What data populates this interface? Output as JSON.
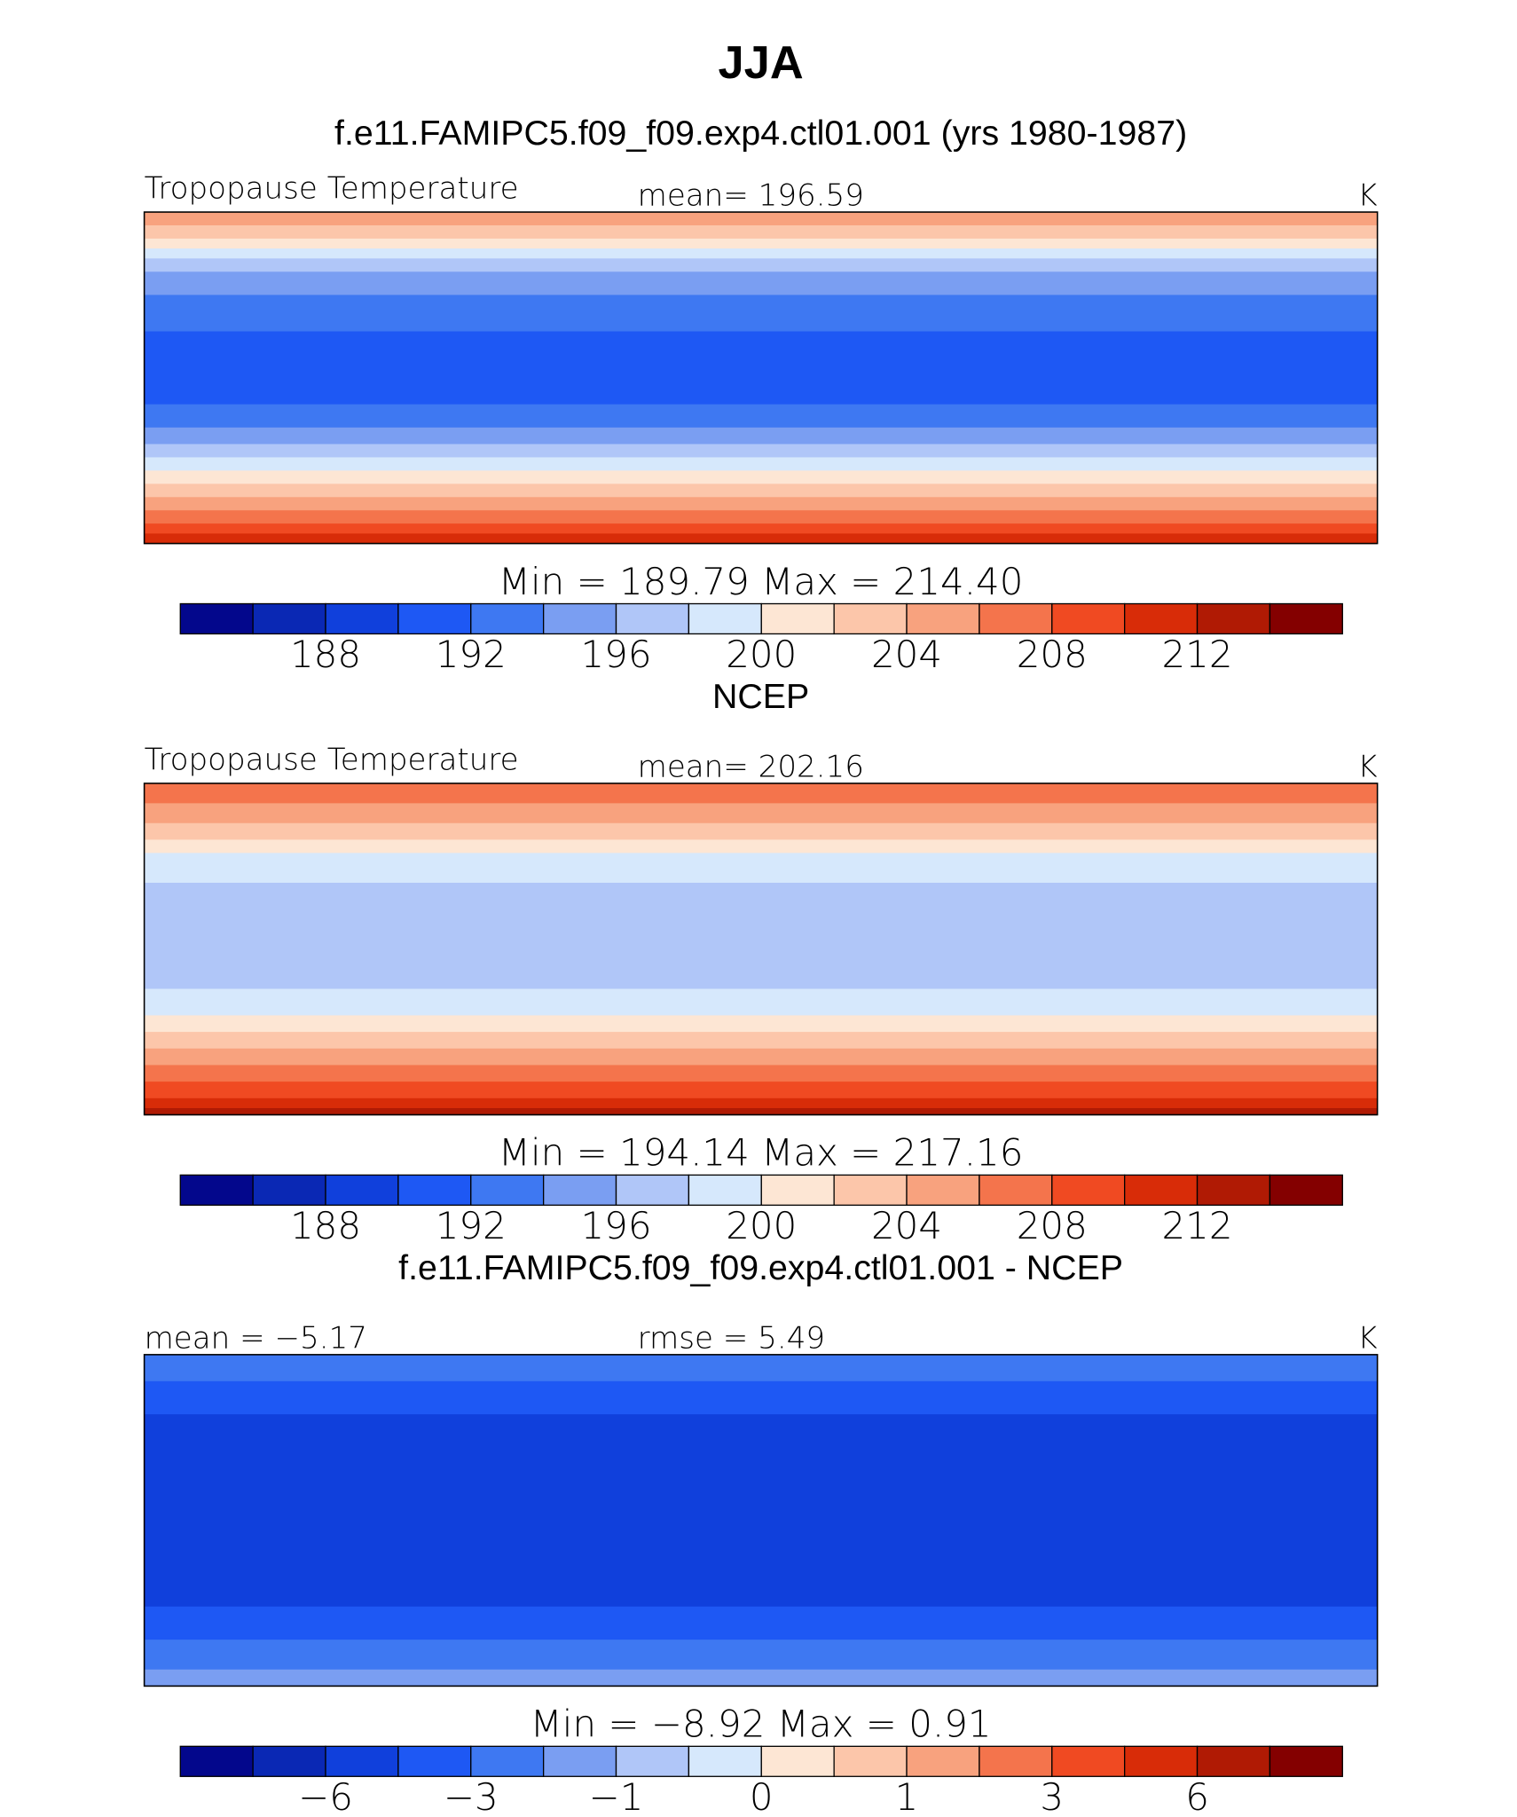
{
  "chart_data": [
    {
      "type": "contour-map",
      "title": "JJA",
      "subtitle": "f.e11.FAMIPC5.f09_f09.exp4.ctl01.001 (yrs 1980-1987)",
      "left_label": "Tropopause Temperature",
      "center_label": "mean=  196.59",
      "units": "K",
      "minmax": "Min  =  189.79  Max  =  214.40",
      "colors": [
        "#03078c",
        "#0a28b4",
        "#1040dc",
        "#1e58f4",
        "#3e78f2",
        "#7a9ef2",
        "#b0c6f8",
        "#d6e8fc",
        "#fde6d4",
        "#fcc6aa",
        "#f8a27e",
        "#f4744c",
        "#f04a22",
        "#d82c08",
        "#b01a04",
        "#840000"
      ],
      "colorbar_ticks": [
        188,
        192,
        196,
        200,
        204,
        208,
        212
      ]
    },
    {
      "type": "contour-map",
      "subtitle": "NCEP",
      "left_label": "Tropopause Temperature",
      "center_label": "mean=  202.16",
      "units": "K",
      "minmax": "Min  =  194.14  Max  =  217.16",
      "colors": [
        "#03078c",
        "#0a28b4",
        "#1040dc",
        "#1e58f4",
        "#3e78f2",
        "#7a9ef2",
        "#b0c6f8",
        "#d6e8fc",
        "#fde6d4",
        "#fcc6aa",
        "#f8a27e",
        "#f4744c",
        "#f04a22",
        "#d82c08",
        "#b01a04",
        "#840000"
      ],
      "colorbar_ticks": [
        188,
        192,
        196,
        200,
        204,
        208,
        212
      ]
    },
    {
      "type": "contour-map",
      "subtitle": "f.e11.FAMIPC5.f09_f09.exp4.ctl01.001 - NCEP",
      "left_label": "mean  =   −5.17",
      "center_label": "rmse  =    5.49",
      "units": "K",
      "minmax": "Min  =   −8.92  Max  =    0.91",
      "colors": [
        "#03078c",
        "#0a28b4",
        "#1040dc",
        "#1e58f4",
        "#3e78f2",
        "#7a9ef2",
        "#b0c6f8",
        "#d6e8fc",
        "#fde6d4",
        "#fcc6aa",
        "#f8a27e",
        "#f4744c",
        "#f04a22",
        "#d82c08",
        "#b01a04",
        "#840000"
      ],
      "colorbar_ticks": [
        {
          "value": -6,
          "label": "−6"
        },
        {
          "value": -3,
          "label": "−3"
        },
        {
          "value": -1,
          "label": "−1"
        },
        0,
        1,
        3,
        6
      ]
    }
  ]
}
